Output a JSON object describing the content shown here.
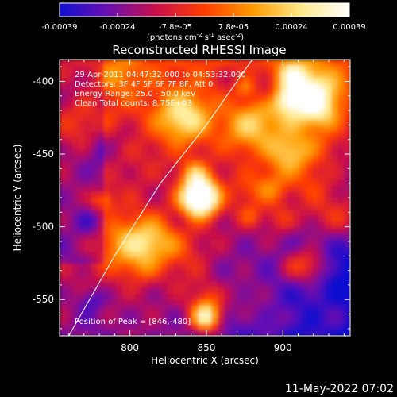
{
  "colorbar": {
    "ticks": [
      "-0.00039",
      "-0.00024",
      "-7.8e-05",
      "7.8e-05",
      "0.00024",
      "0.00039"
    ],
    "unit_main": "(photons cm",
    "unit_exp1": "-2",
    "unit_mid": " s",
    "unit_exp2": "-1",
    "unit_end": " asec",
    "unit_exp3": "-2",
    "unit_close": ")",
    "stops": [
      "#1010d0",
      "#6a0fb0",
      "#c8104a",
      "#ff3d00",
      "#ff9a00",
      "#ffe98a",
      "#ffffff"
    ]
  },
  "chart_data": {
    "type": "heatmap",
    "title": "Reconstructed RHESSI Image",
    "xlabel": "Heliocentric X (arcsec)",
    "ylabel": "Heliocentric Y (arcsec)",
    "xlim": [
      754,
      944
    ],
    "ylim": [
      -575,
      -385
    ],
    "x_ticks": [
      800,
      850,
      900
    ],
    "y_ticks": [
      -400,
      -450,
      -500,
      -550
    ],
    "value_range": [
      -0.00039,
      0.00039
    ],
    "peak": [
      846,
      -480
    ],
    "annotations": [
      "29-Apr-2011 04:47:32.000 to 04:53:32.000",
      "Detectors: 3F 4F 5F 6F 7F 8F, Att 0",
      "Energy Range: 25.0 - 50.0 keV",
      "Clean     Total counts: 8.75E+03"
    ],
    "peak_label": "Position of Peak = [846,-480]",
    "limb": [
      [
        760,
        -575
      ],
      [
        790,
        -520
      ],
      [
        820,
        -470
      ],
      [
        850,
        -430
      ],
      [
        880,
        -385
      ]
    ]
  },
  "footer": {
    "timestamp": "11-May-2022 07:02"
  }
}
